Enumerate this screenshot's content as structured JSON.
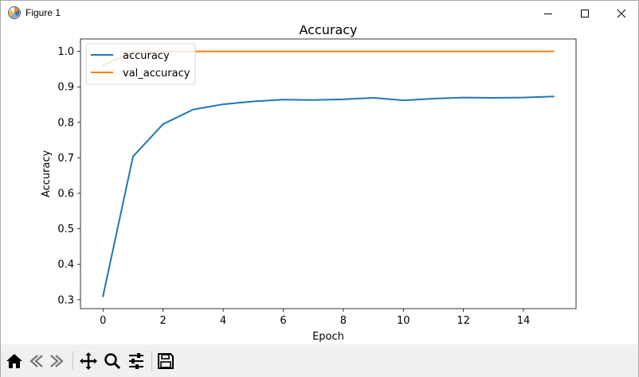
{
  "window": {
    "title": "Figure 1",
    "icon": "matplotlib-icon",
    "controls": [
      "minimize-icon",
      "maximize-icon",
      "close-icon"
    ]
  },
  "toolbar": {
    "buttons": [
      "home-icon",
      "back-icon",
      "forward-icon",
      "pan-icon",
      "zoom-icon",
      "configure-subplots-icon",
      "save-icon"
    ]
  },
  "chart_data": {
    "type": "line",
    "title": "Accuracy",
    "xlabel": "Epoch",
    "ylabel": "Accuracy",
    "xlim": [
      -0.75,
      15.75
    ],
    "ylim": [
      0.275,
      1.035
    ],
    "xticks": [
      0,
      2,
      4,
      6,
      8,
      10,
      12,
      14
    ],
    "yticks": [
      0.3,
      0.4,
      0.5,
      0.6,
      0.7,
      0.8,
      0.9,
      1.0
    ],
    "grid": false,
    "legend_location": "upper left",
    "x": [
      0,
      1,
      2,
      3,
      4,
      5,
      6,
      7,
      8,
      9,
      10,
      11,
      12,
      13,
      14,
      15
    ],
    "series": [
      {
        "name": "accuracy",
        "color": "#1f77b4",
        "values": [
          0.31,
          0.704,
          0.795,
          0.836,
          0.851,
          0.859,
          0.864,
          0.863,
          0.865,
          0.869,
          0.862,
          0.867,
          0.87,
          0.869,
          0.87,
          0.873
        ]
      },
      {
        "name": "val_accuracy",
        "color": "#ff7f0e",
        "values": [
          0.96,
          1.0,
          1.0,
          1.0,
          1.0,
          1.0,
          1.0,
          1.0,
          1.0,
          1.0,
          1.0,
          1.0,
          1.0,
          1.0,
          1.0,
          1.0
        ]
      }
    ]
  }
}
